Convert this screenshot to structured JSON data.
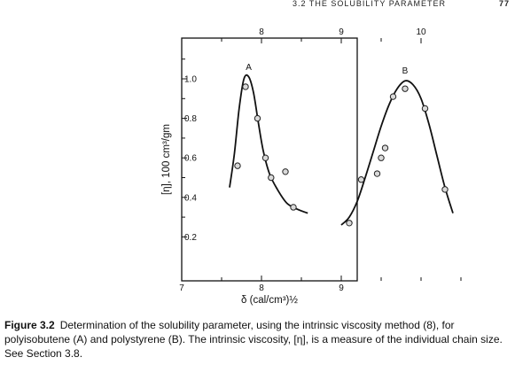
{
  "page_header": {
    "section": "3.2   THE SOLUBILITY PARAMETER",
    "page_number": "77"
  },
  "chart_data": {
    "type": "scatter",
    "title": "",
    "xlabel": "δ (cal/cm³)½",
    "ylabel": "[η], 100 cm³/gm",
    "xlim": [
      7,
      11
    ],
    "ylim": [
      0,
      1.2
    ],
    "bottom_ticks": [
      "7",
      "8",
      "9"
    ],
    "top_ticks": [
      "8",
      "9",
      "10"
    ],
    "y_ticks": [
      "0.2",
      "0.4",
      "0.6",
      "0.8",
      "1.0"
    ],
    "y_tick_values": [
      0.2,
      0.4,
      0.6,
      0.8,
      1.0
    ],
    "series": [
      {
        "name": "A",
        "points": [
          [
            7.7,
            0.56
          ],
          [
            7.8,
            0.96
          ],
          [
            7.95,
            0.8
          ],
          [
            8.05,
            0.6
          ],
          [
            8.12,
            0.5
          ],
          [
            8.3,
            0.53
          ],
          [
            8.4,
            0.35
          ]
        ],
        "curve": [
          [
            7.6,
            0.45
          ],
          [
            7.66,
            0.62
          ],
          [
            7.72,
            0.85
          ],
          [
            7.78,
            1.0
          ],
          [
            7.84,
            1.01
          ],
          [
            7.9,
            0.93
          ],
          [
            7.96,
            0.78
          ],
          [
            8.02,
            0.64
          ],
          [
            8.1,
            0.52
          ],
          [
            8.2,
            0.44
          ],
          [
            8.32,
            0.37
          ],
          [
            8.45,
            0.34
          ],
          [
            8.58,
            0.32
          ]
        ]
      },
      {
        "name": "B",
        "points": [
          [
            9.1,
            0.27
          ],
          [
            9.25,
            0.49
          ],
          [
            9.45,
            0.52
          ],
          [
            9.5,
            0.6
          ],
          [
            9.55,
            0.65
          ],
          [
            9.65,
            0.91
          ],
          [
            9.8,
            0.95
          ],
          [
            10.05,
            0.85
          ],
          [
            10.3,
            0.44
          ]
        ],
        "curve": [
          [
            9.0,
            0.26
          ],
          [
            9.1,
            0.3
          ],
          [
            9.2,
            0.38
          ],
          [
            9.3,
            0.5
          ],
          [
            9.4,
            0.63
          ],
          [
            9.5,
            0.76
          ],
          [
            9.6,
            0.87
          ],
          [
            9.7,
            0.95
          ],
          [
            9.8,
            0.99
          ],
          [
            9.9,
            0.97
          ],
          [
            10.0,
            0.9
          ],
          [
            10.1,
            0.77
          ],
          [
            10.2,
            0.61
          ],
          [
            10.3,
            0.45
          ],
          [
            10.4,
            0.32
          ]
        ]
      }
    ]
  },
  "caption": {
    "label": "Figure 3.2",
    "text": "Determination of the solubility parameter, using the intrinsic viscosity method (8), for polyisobutene (A) and polystyrene (B). The intrinsic viscosity, [η], is a measure of the individual chain size. See Section 3.8."
  }
}
